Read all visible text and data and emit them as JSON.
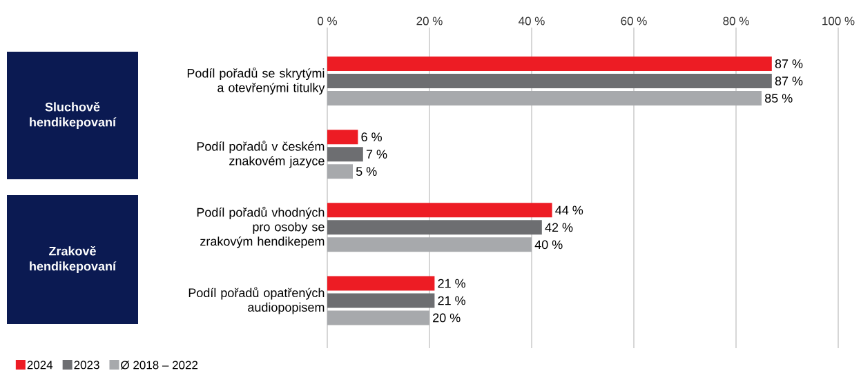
{
  "chart_data": {
    "type": "bar",
    "orientation": "horizontal",
    "categories": [
      "Podíl pořadů se skrytými a otevřenými titulky",
      "Podíl pořadů v českém znakovém jazyce",
      "Podíl pořadů vhodných pro osoby se zrakovým hendikepem",
      "Podíl pořadů opatřených audiopopisem"
    ],
    "series": [
      {
        "name": "2024",
        "color": "#ed1c24",
        "values": [
          87,
          6,
          44,
          21
        ],
        "value_labels": [
          "87 %",
          "6 %",
          "44 %",
          "21 %"
        ]
      },
      {
        "name": "2023",
        "color": "#6d6e71",
        "values": [
          87,
          7,
          42,
          21
        ],
        "value_labels": [
          "87 %",
          "7 %",
          "42 %",
          "21 %"
        ]
      },
      {
        "name": "Ø 2018 – 2022",
        "color": "#a7a9ac",
        "values": [
          85,
          5,
          40,
          20
        ],
        "value_labels": [
          "85 %",
          "5 %",
          "40 %",
          "20 %"
        ]
      }
    ],
    "xlim": [
      0,
      100
    ],
    "xticks": [
      {
        "value": 0,
        "label": "0 %"
      },
      {
        "value": 20,
        "label": "20 %"
      },
      {
        "value": 40,
        "label": "40 %"
      },
      {
        "value": 60,
        "label": "60 %"
      },
      {
        "value": 80,
        "label": "80 %"
      },
      {
        "value": 100,
        "label": "100 %"
      }
    ],
    "grid": "x",
    "legend": "bottom left",
    "annotations": [
      "Sluchově hendikepovaní",
      "Zrakově hendikepovaní"
    ]
  }
}
